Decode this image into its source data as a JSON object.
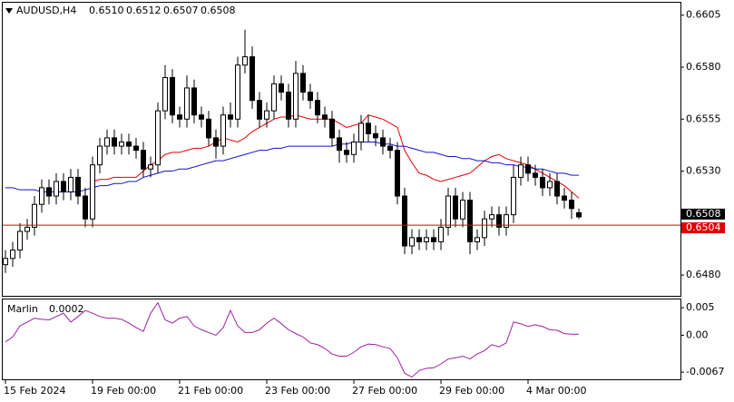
{
  "chart_data": [
    {
      "type": "candlestick",
      "title": "AUDUSD,H4",
      "header_values": [
        "0.6510",
        "0.6512",
        "0.6507",
        "0.6508"
      ],
      "categories": [
        "15 Feb 2024",
        null,
        null,
        null,
        null,
        null,
        null,
        null,
        null,
        null,
        null,
        null,
        "19 Feb 00:00",
        null,
        null,
        null,
        null,
        null,
        null,
        null,
        null,
        null,
        null,
        null,
        "21 Feb 00:00",
        null,
        null,
        null,
        null,
        null,
        null,
        null,
        null,
        null,
        null,
        null,
        "23 Feb 00:00",
        null,
        null,
        null,
        null,
        null,
        null,
        null,
        null,
        null,
        null,
        null,
        "27 Feb 00:00",
        null,
        null,
        null,
        null,
        null,
        null,
        null,
        null,
        null,
        null,
        null,
        "29 Feb 00:00",
        null,
        null,
        null,
        null,
        null,
        null,
        null,
        null,
        null,
        null,
        null,
        "4 Mar 00:00",
        null,
        null,
        null,
        null,
        null,
        null,
        null
      ],
      "open": [
        0.6485,
        0.6488,
        0.6492,
        0.6501,
        0.6503,
        0.6514,
        0.6522,
        0.6518,
        0.6525,
        0.652,
        0.6527,
        0.6518,
        0.6507,
        0.6533,
        0.6542,
        0.6546,
        0.6542,
        0.6544,
        0.6542,
        0.654,
        0.6531,
        0.6533,
        0.6559,
        0.6575,
        0.6557,
        0.6555,
        0.657,
        0.6557,
        0.6555,
        0.6546,
        0.6542,
        0.6557,
        0.6555,
        0.6581,
        0.6585,
        0.6564,
        0.6555,
        0.6559,
        0.6572,
        0.6568,
        0.6555,
        0.6577,
        0.6568,
        0.6564,
        0.6557,
        0.6555,
        0.6546,
        0.654,
        0.6538,
        0.6544,
        0.6553,
        0.6548,
        0.6546,
        0.6542,
        0.654,
        0.6518,
        0.6494,
        0.6498,
        0.6496,
        0.6498,
        0.6496,
        0.6503,
        0.6518,
        0.6507,
        0.6516,
        0.6496,
        0.6498,
        0.6507,
        0.6509,
        0.6503,
        0.6509,
        0.6527,
        0.6533,
        0.6529,
        0.6527,
        0.6522,
        0.6525,
        0.6518,
        0.6516,
        0.651
      ],
      "high": [
        0.6492,
        0.6496,
        0.6505,
        0.6507,
        0.6518,
        0.6526,
        0.6526,
        0.6529,
        0.6529,
        0.6531,
        0.6531,
        0.6522,
        0.6537,
        0.6546,
        0.655,
        0.655,
        0.6548,
        0.6548,
        0.6546,
        0.6544,
        0.6537,
        0.6563,
        0.6581,
        0.6579,
        0.6561,
        0.6576,
        0.6574,
        0.6561,
        0.6559,
        0.655,
        0.6561,
        0.6563,
        0.6585,
        0.6598,
        0.659,
        0.6568,
        0.6563,
        0.6576,
        0.6576,
        0.6572,
        0.6583,
        0.6581,
        0.6572,
        0.6568,
        0.6561,
        0.6559,
        0.655,
        0.6544,
        0.6548,
        0.6557,
        0.6557,
        0.6552,
        0.655,
        0.6546,
        0.6544,
        0.6522,
        0.6502,
        0.6502,
        0.6502,
        0.6502,
        0.6507,
        0.6522,
        0.6522,
        0.652,
        0.652,
        0.6502,
        0.6511,
        0.6513,
        0.6513,
        0.6513,
        0.6533,
        0.6537,
        0.6537,
        0.6533,
        0.6531,
        0.6529,
        0.6529,
        0.6522,
        0.652,
        0.6512
      ],
      "low": [
        0.6481,
        0.6484,
        0.6488,
        0.6497,
        0.6499,
        0.651,
        0.6514,
        0.6514,
        0.6516,
        0.6516,
        0.6514,
        0.6503,
        0.6503,
        0.6529,
        0.6538,
        0.6538,
        0.6538,
        0.6538,
        0.6536,
        0.6527,
        0.6527,
        0.6529,
        0.6555,
        0.6553,
        0.6551,
        0.6551,
        0.6553,
        0.6551,
        0.6542,
        0.6536,
        0.6538,
        0.6551,
        0.6551,
        0.6577,
        0.656,
        0.6551,
        0.6551,
        0.6555,
        0.6564,
        0.6551,
        0.6551,
        0.6564,
        0.656,
        0.6553,
        0.6551,
        0.6542,
        0.6534,
        0.6534,
        0.6534,
        0.654,
        0.6544,
        0.6542,
        0.6538,
        0.6536,
        0.6514,
        0.649,
        0.649,
        0.6492,
        0.6492,
        0.6492,
        0.6492,
        0.6499,
        0.6503,
        0.6503,
        0.649,
        0.6492,
        0.6494,
        0.6503,
        0.6499,
        0.6499,
        0.6505,
        0.6523,
        0.6525,
        0.6523,
        0.6518,
        0.6518,
        0.6514,
        0.6512,
        0.6507,
        0.6507
      ],
      "close": [
        0.6488,
        0.6492,
        0.6501,
        0.6503,
        0.6514,
        0.6522,
        0.6518,
        0.6525,
        0.652,
        0.6527,
        0.6518,
        0.6507,
        0.6533,
        0.6542,
        0.6546,
        0.6542,
        0.6544,
        0.6542,
        0.654,
        0.6531,
        0.6533,
        0.6559,
        0.6575,
        0.6557,
        0.6555,
        0.657,
        0.6557,
        0.6555,
        0.6546,
        0.6542,
        0.6557,
        0.6555,
        0.6581,
        0.6585,
        0.6564,
        0.6555,
        0.6559,
        0.6572,
        0.6568,
        0.6555,
        0.6577,
        0.6568,
        0.6564,
        0.6557,
        0.6555,
        0.6546,
        0.654,
        0.6538,
        0.6544,
        0.6553,
        0.6548,
        0.6546,
        0.6542,
        0.654,
        0.6518,
        0.6494,
        0.6498,
        0.6496,
        0.6498,
        0.6496,
        0.6503,
        0.6518,
        0.6507,
        0.6516,
        0.6496,
        0.6498,
        0.6507,
        0.6509,
        0.6503,
        0.6509,
        0.6527,
        0.6533,
        0.6529,
        0.6527,
        0.6522,
        0.6525,
        0.6518,
        0.6516,
        0.6512,
        0.6508
      ],
      "lines": [
        {
          "color": "#e00000",
          "values": [
            null,
            null,
            null,
            null,
            null,
            null,
            null,
            null,
            null,
            null,
            null,
            null,
            0.6525,
            0.6526,
            0.6526,
            0.6527,
            0.6527,
            0.6527,
            0.6527,
            0.653,
            0.6533,
            0.6535,
            0.6538,
            0.6539,
            0.6539,
            0.654,
            0.6541,
            0.6541,
            0.6542,
            0.6544,
            0.6546,
            0.6545,
            0.6544,
            0.6546,
            0.6549,
            0.6551,
            0.6553,
            0.6555,
            0.6556,
            0.6556,
            0.6557,
            0.6556,
            0.6555,
            0.6555,
            0.6555,
            0.6555,
            0.6553,
            0.6551,
            0.6552,
            0.6553,
            0.6557,
            0.6556,
            0.6555,
            0.6553,
            0.6551,
            0.654,
            0.6534,
            0.6529,
            0.6528,
            0.6526,
            0.6525,
            0.6526,
            0.6527,
            0.6528,
            0.6529,
            0.6532,
            0.6535,
            0.6537,
            0.6538,
            0.6536,
            0.6535,
            0.6534,
            0.6533,
            0.6531,
            0.6529,
            0.6527,
            0.6525,
            0.6523,
            0.652,
            0.6517
          ]
        },
        {
          "color": "#1414c8",
          "values": [
            0.6522,
            0.6522,
            0.6521,
            0.6521,
            0.6521,
            0.652,
            0.652,
            0.652,
            0.652,
            0.652,
            0.652,
            0.6521,
            0.6522,
            0.6523,
            0.6523,
            0.6524,
            0.6524,
            0.6525,
            0.6525,
            0.6527,
            0.6528,
            0.6529,
            0.653,
            0.653,
            0.6531,
            0.6531,
            0.6532,
            0.6533,
            0.6534,
            0.6535,
            0.6535,
            0.6536,
            0.6537,
            0.6538,
            0.6539,
            0.654,
            0.654,
            0.6541,
            0.6541,
            0.6542,
            0.6542,
            0.6542,
            0.6542,
            0.6542,
            0.6542,
            0.6542,
            0.6543,
            0.6543,
            0.6544,
            0.6544,
            0.6544,
            0.6544,
            0.6543,
            0.6543,
            0.6542,
            0.6542,
            0.6541,
            0.654,
            0.6539,
            0.6539,
            0.6538,
            0.6537,
            0.6537,
            0.6536,
            0.6536,
            0.6535,
            0.6535,
            0.6534,
            0.6534,
            0.6533,
            0.6533,
            0.6532,
            0.6532,
            0.6531,
            0.6531,
            0.653,
            0.6529,
            0.6529,
            0.6528,
            0.6528
          ]
        }
      ],
      "price_lines": [
        {
          "value": 0.6508,
          "label": "0.6508",
          "color": "#000000"
        },
        {
          "value": 0.6504,
          "label": "0.6504",
          "color": "#e00000"
        }
      ],
      "ylim": [
        0.647,
        0.6611
      ],
      "yticks": [
        0.6605,
        {
          "value": 0.658,
          "label": "0.6580"
        },
        0.6555,
        {
          "value": 0.653,
          "label": "0.6530"
        },
        {
          "value": 0.648,
          "label": "0.6480"
        }
      ]
    },
    {
      "type": "line",
      "title": "Marlin",
      "current_label": "0.0002",
      "color": "#a020a0",
      "values": [
        -0.0012,
        -0.0003,
        0.0017,
        0.0024,
        0.0031,
        0.0029,
        0.0028,
        0.0034,
        0.004,
        0.0024,
        0.0034,
        0.0045,
        0.004,
        0.0034,
        0.0031,
        0.0031,
        0.0029,
        0.0022,
        0.0014,
        0.0007,
        0.004,
        0.0059,
        0.0028,
        0.0022,
        0.0031,
        0.0034,
        0.0017,
        0.001,
        0.0005,
        0,
        0.0014,
        0.0045,
        0.0017,
        0.0005,
        0.0005,
        0.001,
        0.0022,
        0.0031,
        0.0021,
        0.001,
        0.0003,
        -0.0003,
        -0.0014,
        -0.0017,
        -0.0024,
        -0.0034,
        -0.0038,
        -0.0038,
        -0.0031,
        -0.0021,
        -0.0016,
        -0.0017,
        -0.0021,
        -0.0024,
        -0.0041,
        -0.0069,
        -0.0076,
        -0.0064,
        -0.006,
        -0.0059,
        -0.0052,
        -0.0043,
        -0.0041,
        -0.0038,
        -0.0043,
        -0.0034,
        -0.0028,
        -0.0017,
        -0.0021,
        -0.0014,
        0.0024,
        0.0021,
        0.0016,
        0.0019,
        0.0016,
        0.001,
        0.0009,
        0.0003,
        0.0002,
        0.0002
      ],
      "ylim": [
        -0.008,
        0.0065
      ],
      "yticks": [
        0.005,
        {
          "value": 0,
          "label": "0.00"
        },
        -0.0067
      ]
    }
  ]
}
